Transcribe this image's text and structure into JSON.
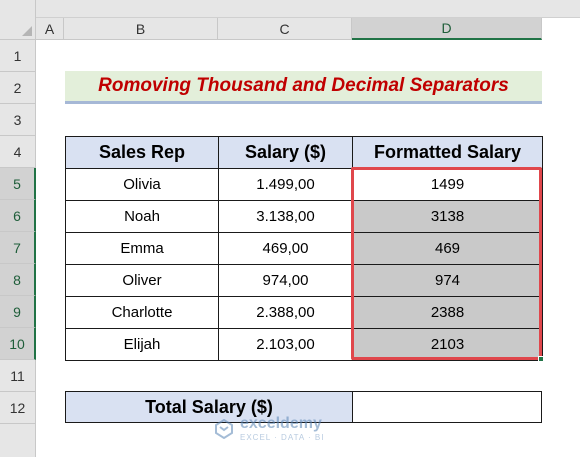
{
  "columns": [
    "A",
    "B",
    "C",
    "D"
  ],
  "rows": [
    "1",
    "2",
    "3",
    "4",
    "5",
    "6",
    "7",
    "8",
    "9",
    "10",
    "11",
    "12"
  ],
  "title": "Romoving Thousand and Decimal Separators",
  "table": {
    "headers": [
      "Sales Rep",
      "Salary ($)",
      "Formatted Salary"
    ],
    "rows": [
      {
        "name": "Olivia",
        "salary": "1.499,00",
        "formatted": "1499"
      },
      {
        "name": "Noah",
        "salary": "3.138,00",
        "formatted": "3138"
      },
      {
        "name": "Emma",
        "salary": "469,00",
        "formatted": "469"
      },
      {
        "name": "Oliver",
        "salary": "974,00",
        "formatted": "974"
      },
      {
        "name": "Charlotte",
        "salary": "2.388,00",
        "formatted": "2388"
      },
      {
        "name": "Elijah",
        "salary": "2.103,00",
        "formatted": "2103"
      }
    ]
  },
  "total": {
    "label": "Total Salary ($)",
    "value": ""
  },
  "watermark": {
    "name": "exceldemy",
    "sub": "EXCEL · DATA · BI"
  },
  "colors": {
    "accent": "#217346",
    "title": "#c00000",
    "header_fill": "#d9e1f2",
    "selection": "#e0474c"
  }
}
